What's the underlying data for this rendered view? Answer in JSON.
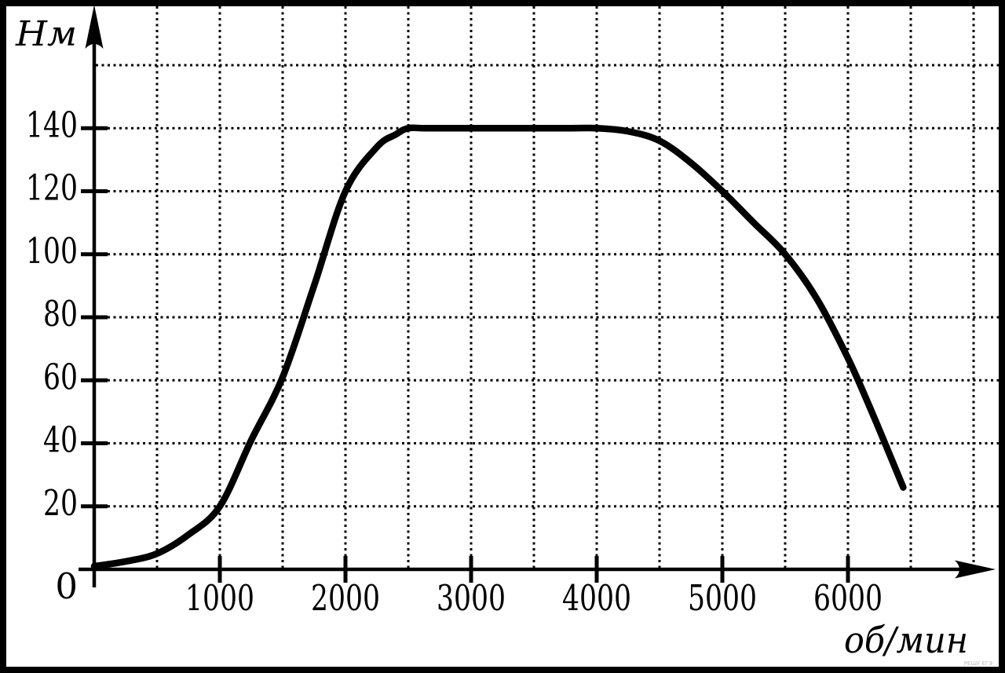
{
  "watermark": {
    "text": "РЕШУ ЕГЭ"
  },
  "chart_data": {
    "type": "line",
    "title": "",
    "xlabel": "об/мин",
    "ylabel": "Нм",
    "origin_label": "0",
    "xlim": [
      0,
      7200
    ],
    "ylim": [
      0,
      180
    ],
    "grid": "dotted",
    "legend": "none",
    "x_ticks": [
      1000,
      2000,
      3000,
      4000,
      5000,
      6000
    ],
    "y_ticks": [
      20,
      40,
      60,
      80,
      100,
      120,
      140
    ],
    "x_grid_step": 500,
    "x_grid_max": 7000,
    "y_grid_step": 20,
    "y_grid_max": 160,
    "series": [
      {
        "name": "torque-curve",
        "color": "#000000",
        "points": [
          [
            0,
            1
          ],
          [
            250,
            2.5
          ],
          [
            500,
            5
          ],
          [
            750,
            11
          ],
          [
            1000,
            20
          ],
          [
            1250,
            41
          ],
          [
            1500,
            61
          ],
          [
            1750,
            90
          ],
          [
            2000,
            120
          ],
          [
            2250,
            134
          ],
          [
            2400,
            138
          ],
          [
            2500,
            140
          ],
          [
            2650,
            140
          ],
          [
            3200,
            140
          ],
          [
            3800,
            140
          ],
          [
            4000,
            140
          ],
          [
            4250,
            139
          ],
          [
            4500,
            136
          ],
          [
            4750,
            129
          ],
          [
            5000,
            120
          ],
          [
            5250,
            110
          ],
          [
            5500,
            100
          ],
          [
            5750,
            86
          ],
          [
            6000,
            67
          ],
          [
            6200,
            49
          ],
          [
            6440,
            26
          ]
        ]
      }
    ]
  }
}
